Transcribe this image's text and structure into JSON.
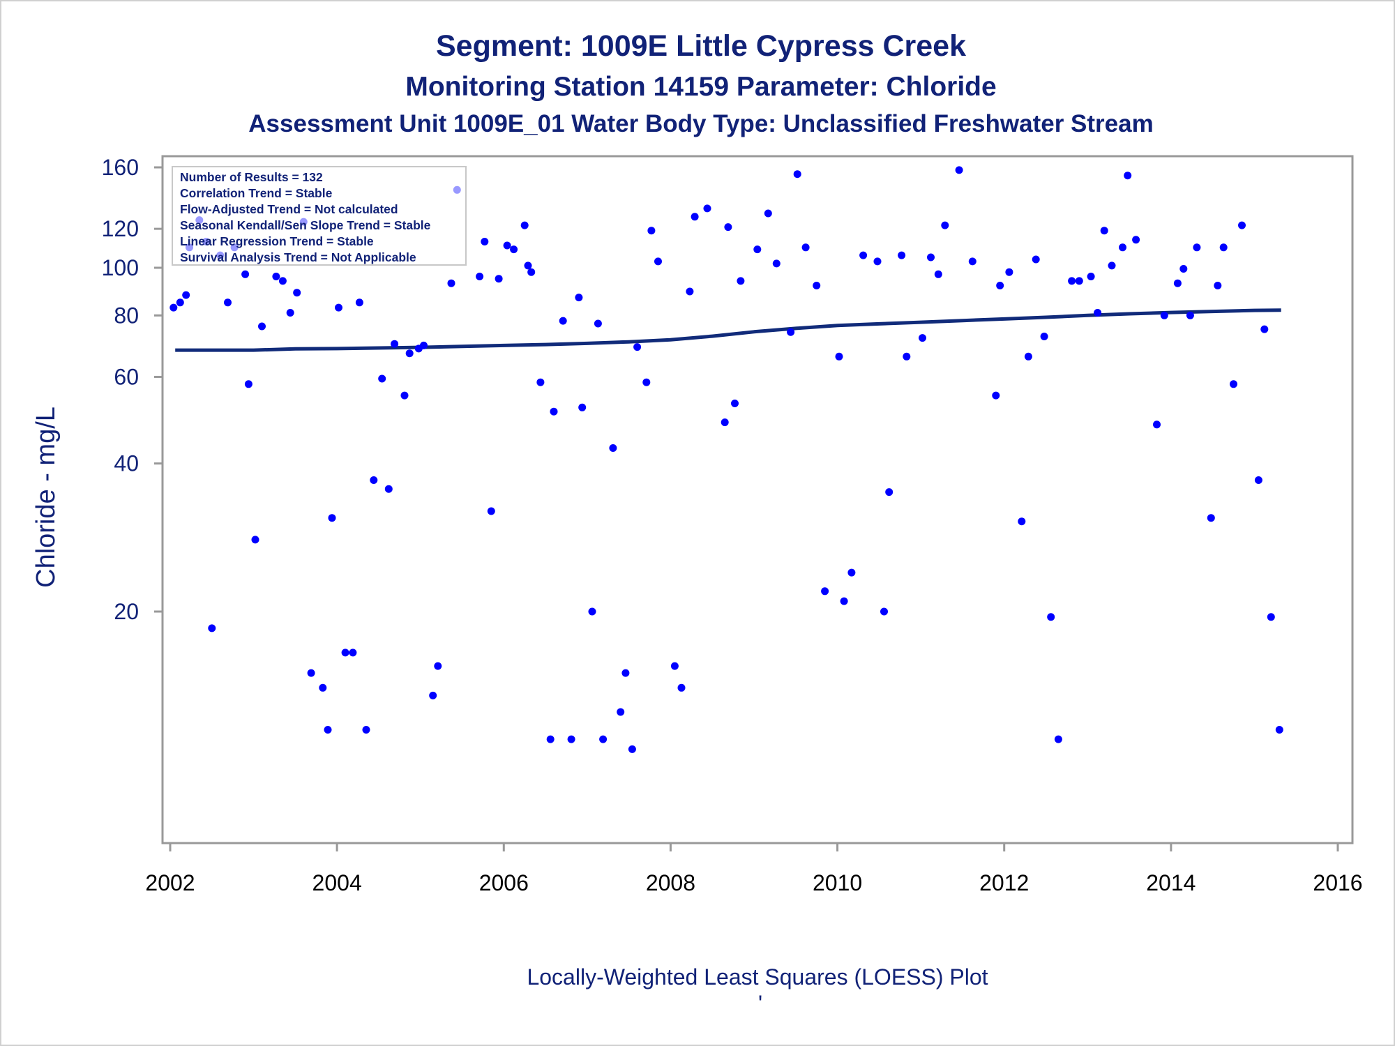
{
  "chart_data": {
    "type": "scatter",
    "title": "Segment: 1009E  Little Cypress Creek",
    "subtitle": "Monitoring Station 14159 Parameter: Chloride",
    "subtitle2": "Assessment Unit 1009E_01   Water Body Type: Unclassified Freshwater Stream",
    "ylabel": "Chloride - mg/L",
    "xlabel": "",
    "footnote": "Locally-Weighted Least Squares (LOESS) Plot",
    "footnote_mark": "'",
    "xlim": [
      2002,
      2016
    ],
    "ylim": [
      7,
      165
    ],
    "y_scale": "log",
    "x_ticks": [
      2002,
      2004,
      2006,
      2008,
      2010,
      2012,
      2014,
      2016
    ],
    "y_ticks": [
      20,
      40,
      60,
      80,
      100,
      120,
      160
    ],
    "grid": false,
    "legend_placement": "top-left",
    "stats_box": [
      "Number of Results = 132",
      "Correlation Trend = Stable",
      "Flow-Adjusted Trend = Not calculated",
      "Seasonal Kendall/Sen Slope Trend = Stable",
      "Linear Regression Trend = Stable",
      "Survival Analysis Trend = Not Applicable"
    ],
    "colors": {
      "points": "#0000ff",
      "loess": "#112b7a",
      "text": "#112277",
      "axis": "#999999"
    },
    "series": [
      {
        "type": "scatter",
        "x": [
          2002.04,
          2002.12,
          2002.19,
          2002.23,
          2002.35,
          2002.43,
          2002.5,
          2002.6,
          2002.69,
          2002.77,
          2002.9,
          2002.94,
          2003.02,
          2003.1,
          2003.27,
          2003.35,
          2003.44,
          2003.52,
          2003.6,
          2003.69,
          2003.83,
          2003.89,
          2003.94,
          2004.02,
          2004.1,
          2004.19,
          2004.27,
          2004.35,
          2004.44,
          2004.54,
          2004.62,
          2004.69,
          2004.81,
          2004.87,
          2004.98,
          2005.04,
          2005.15,
          2005.21,
          2005.37,
          2005.44,
          2005.71,
          2005.77,
          2005.85,
          2005.94,
          2006.04,
          2006.12,
          2006.25,
          2006.29,
          2006.33,
          2006.44,
          2006.6,
          2006.56,
          2006.71,
          2006.81,
          2006.9,
          2006.94,
          2007.06,
          2007.13,
          2007.19,
          2007.31,
          2007.4,
          2007.46,
          2007.54,
          2007.6,
          2007.71,
          2007.77,
          2007.85,
          2008.05,
          2008.13,
          2008.23,
          2008.29,
          2008.44,
          2008.65,
          2008.69,
          2008.77,
          2008.84,
          2009.04,
          2009.17,
          2009.27,
          2009.44,
          2009.52,
          2009.62,
          2009.75,
          2009.85,
          2010.02,
          2010.08,
          2010.17,
          2010.31,
          2010.48,
          2010.56,
          2010.62,
          2010.77,
          2010.83,
          2011.02,
          2011.12,
          2011.21,
          2011.29,
          2011.46,
          2011.62,
          2011.9,
          2011.95,
          2012.06,
          2012.21,
          2012.29,
          2012.38,
          2012.48,
          2012.56,
          2012.65,
          2012.81,
          2012.9,
          2013.04,
          2013.12,
          2013.2,
          2013.29,
          2013.42,
          2013.48,
          2013.58,
          2013.83,
          2013.92,
          2014.08,
          2014.15,
          2014.23,
          2014.31,
          2014.48,
          2014.56,
          2014.63,
          2014.75,
          2014.85,
          2015.05,
          2015.12,
          2015.2,
          2015.3
        ],
        "y": [
          83,
          85,
          88,
          110,
          125,
          113,
          18.5,
          106,
          85,
          110,
          97,
          58,
          28,
          76,
          96,
          94,
          81,
          89,
          124,
          15,
          14,
          11.5,
          31,
          83,
          16.5,
          16.5,
          85,
          11.5,
          37,
          59.5,
          35.5,
          70,
          55,
          67,
          68.5,
          69.5,
          13.5,
          15.5,
          93,
          144,
          96,
          113,
          32,
          95,
          111,
          109,
          122,
          101,
          98,
          58.5,
          51,
          11,
          78,
          11,
          87,
          52,
          20,
          77,
          11,
          43,
          12.5,
          15,
          10.5,
          69,
          58.5,
          119,
          103,
          15.5,
          14,
          89.5,
          127,
          132,
          48.5,
          121,
          53,
          94,
          109,
          129,
          102,
          74,
          155,
          110,
          92,
          22,
          66,
          21,
          24,
          106,
          103,
          20,
          35,
          106,
          66,
          72,
          105,
          97,
          122,
          158,
          103,
          55,
          92,
          98,
          30.5,
          66,
          104,
          72.5,
          19.5,
          11,
          94,
          94,
          96,
          81,
          119,
          101,
          110,
          154,
          114,
          48,
          80,
          93,
          99.5,
          80,
          110,
          31,
          92,
          110,
          58,
          122,
          37,
          75,
          19.5,
          11.5
        ]
      },
      {
        "type": "line",
        "name": "",
        "x": [
          2002.06,
          2003.0,
          2003.5,
          2004.0,
          2004.5,
          2005.0,
          2005.5,
          2006.0,
          2006.5,
          2007.0,
          2007.5,
          2008.0,
          2008.5,
          2009.0,
          2009.5,
          2010.0,
          2010.5,
          2011.0,
          2011.5,
          2012.0,
          2012.5,
          2013.0,
          2013.5,
          2014.0,
          2014.5,
          2015.0,
          2015.32
        ],
        "y": [
          68,
          68,
          68.4,
          68.5,
          68.7,
          68.9,
          69.2,
          69.5,
          69.8,
          70.2,
          70.7,
          71.4,
          72.6,
          74.1,
          75.3,
          76.3,
          76.9,
          77.5,
          78.1,
          78.7,
          79.3,
          80,
          80.6,
          81.1,
          81.5,
          81.9,
          82
        ]
      }
    ]
  }
}
